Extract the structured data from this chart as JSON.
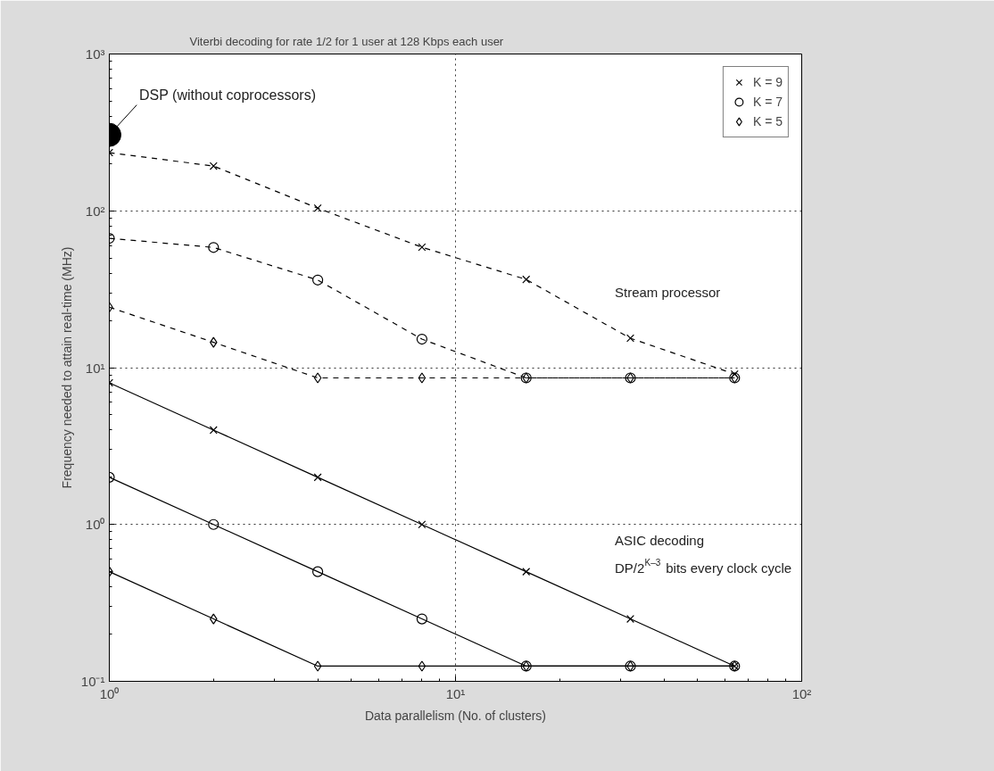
{
  "chart_data": {
    "type": "line",
    "title": "Viterbi decoding for rate 1/2 for 1 user at 128 Kbps each user",
    "xlabel": "Data parallelism (No. of clusters)",
    "ylabel": "Frequency needed to attain real-time (MHz)",
    "x": [
      1,
      2,
      4,
      8,
      16,
      32,
      64
    ],
    "series": [
      {
        "name": "K = 9",
        "color": "#000000",
        "marker": "cross",
        "line_style": "dashed",
        "values": [
          235,
          193,
          104,
          58.6,
          36.5,
          15.4,
          9.1
        ]
      },
      {
        "name": "K = 7",
        "color": "#000000",
        "marker": "circle",
        "line_style": "dashed",
        "values": [
          66.8,
          58.4,
          36.2,
          15.2,
          8.6,
          8.6,
          8.6
        ]
      },
      {
        "name": "K = 5",
        "color": "#000000",
        "marker": "diamond",
        "line_style": "dashed",
        "values": [
          24.3,
          14.5,
          8.6,
          8.6,
          8.6,
          8.6,
          8.6
        ]
      },
      {
        "color": "#000000",
        "marker": "cross",
        "line_style": "solid",
        "values": [
          8,
          4,
          2,
          1,
          0.5,
          0.25,
          0.125
        ]
      },
      {
        "color": "#000000",
        "marker": "circle",
        "line_style": "solid",
        "values": [
          2,
          1,
          0.5,
          0.25,
          0.125,
          0.125,
          0.125
        ]
      },
      {
        "color": "#000000",
        "marker": "diamond",
        "line_style": "solid",
        "values": [
          0.5,
          0.25,
          0.125,
          0.125,
          0.125,
          0.125,
          0.125
        ]
      },
      {
        "type": "scatter",
        "color": "#000000",
        "marker": "circle",
        "x": [
          1
        ],
        "values": [
          305
        ]
      }
    ],
    "log": "xy",
    "xlim": [
      1,
      100
    ],
    "ylim": [
      0.1,
      1000
    ],
    "xticks": [
      {
        "value": 1,
        "label": "10⁰"
      },
      {
        "value": 10,
        "label": "10¹"
      },
      {
        "value": 100,
        "label": "10²"
      }
    ],
    "yticks": [
      {
        "value": 0.1,
        "label": "10⁻¹"
      },
      {
        "value": 1,
        "label": "10⁰"
      },
      {
        "value": 10,
        "label": "10¹"
      },
      {
        "value": 100,
        "label": "10²"
      },
      {
        "value": 1000,
        "label": "10³"
      }
    ],
    "grid": true,
    "legend": "top right",
    "annotations": [
      {
        "text": "DSP (without coprocessors)",
        "x": 1,
        "y": 305
      },
      "Stream processor",
      "ASIC decoding",
      "DP/2$^{K–3}$ bits every clock cycle"
    ]
  }
}
